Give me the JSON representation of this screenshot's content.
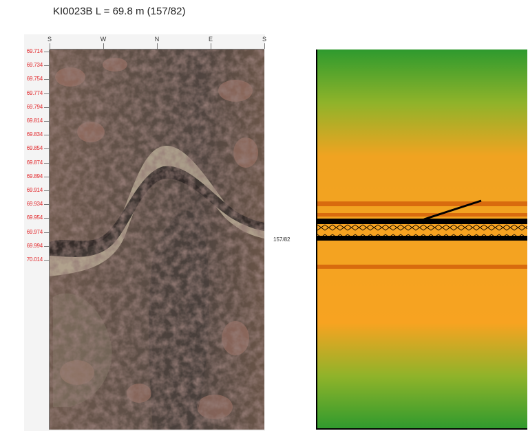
{
  "title": "KI0023B L = 69.8 m (157/82)",
  "depth_scale": [
    "69.714",
    "69.734",
    "69.754",
    "69.774",
    "69.794",
    "69.814",
    "69.834",
    "69.854",
    "69.874",
    "69.894",
    "69.914",
    "69.934",
    "69.954",
    "69.974",
    "69.994",
    "70.014"
  ],
  "compass": [
    "S",
    "W",
    "N",
    "E",
    "S"
  ],
  "feature_label": "157/82",
  "colors": {
    "depth_text": "#e2262a",
    "log_green": "#2e9a2e",
    "log_orange": "#f7a321",
    "log_dark_orange": "#d86b0e",
    "log_black": "#000000"
  }
}
